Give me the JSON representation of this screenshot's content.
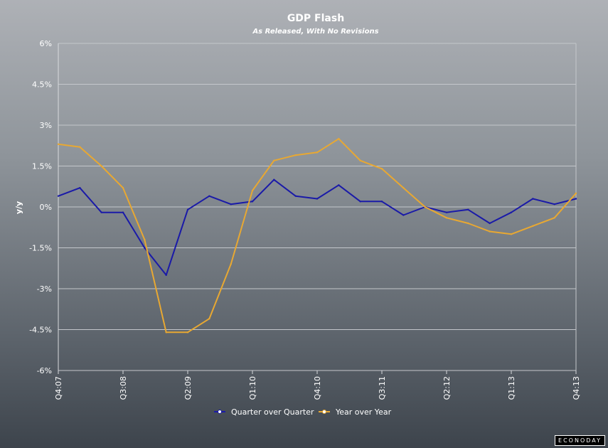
{
  "chart_data": {
    "type": "line",
    "title": "GDP Flash",
    "subtitle": "As Released, With No Revisions",
    "ylabel": "y/y",
    "xlabel": "",
    "ylim": [
      -6,
      6
    ],
    "y_ticks": [
      6,
      4.5,
      3,
      1.5,
      0,
      -1.5,
      -3,
      -4.5,
      -6
    ],
    "y_tick_labels": [
      "6%",
      "4.5%",
      "3%",
      "1.5%",
      "0%",
      "-1.5%",
      "-3%",
      "-4.5%",
      "-6%"
    ],
    "categories": [
      "Q4:07",
      "Q1:08",
      "Q2:08",
      "Q3:08",
      "Q4:08",
      "Q1:09",
      "Q2:09",
      "Q3:09",
      "Q4:09",
      "Q1:10",
      "Q2:10",
      "Q3:10",
      "Q4:10",
      "Q1:11",
      "Q2:11",
      "Q3:11",
      "Q4:11",
      "Q1:12",
      "Q2:12",
      "Q3:12",
      "Q4:12",
      "Q1:13",
      "Q2:13",
      "Q3:13",
      "Q4:13"
    ],
    "tick_label_indices": [
      0,
      3,
      6,
      9,
      12,
      15,
      18,
      21,
      24
    ],
    "grid": true,
    "legend_position": "bottom",
    "series": [
      {
        "name": "Quarter over Quarter",
        "color": "#1a1aa8",
        "values": [
          0.4,
          0.7,
          -0.2,
          -0.2,
          -1.5,
          -2.5,
          -0.1,
          0.4,
          0.1,
          0.2,
          1.0,
          0.4,
          0.3,
          0.8,
          0.2,
          0.2,
          -0.3,
          0.0,
          -0.2,
          -0.1,
          -0.6,
          -0.2,
          0.3,
          0.1,
          0.3
        ]
      },
      {
        "name": "Year over Year",
        "color": "#e8a832",
        "values": [
          2.3,
          2.2,
          1.5,
          0.7,
          -1.2,
          -4.6,
          -4.6,
          -4.1,
          -2.1,
          0.6,
          1.7,
          1.9,
          2.0,
          2.5,
          1.7,
          1.4,
          0.7,
          0.0,
          -0.4,
          -0.6,
          -0.9,
          -1.0,
          -0.7,
          -0.4,
          0.5
        ]
      }
    ]
  },
  "logo": {
    "text": "ECONODAY"
  }
}
